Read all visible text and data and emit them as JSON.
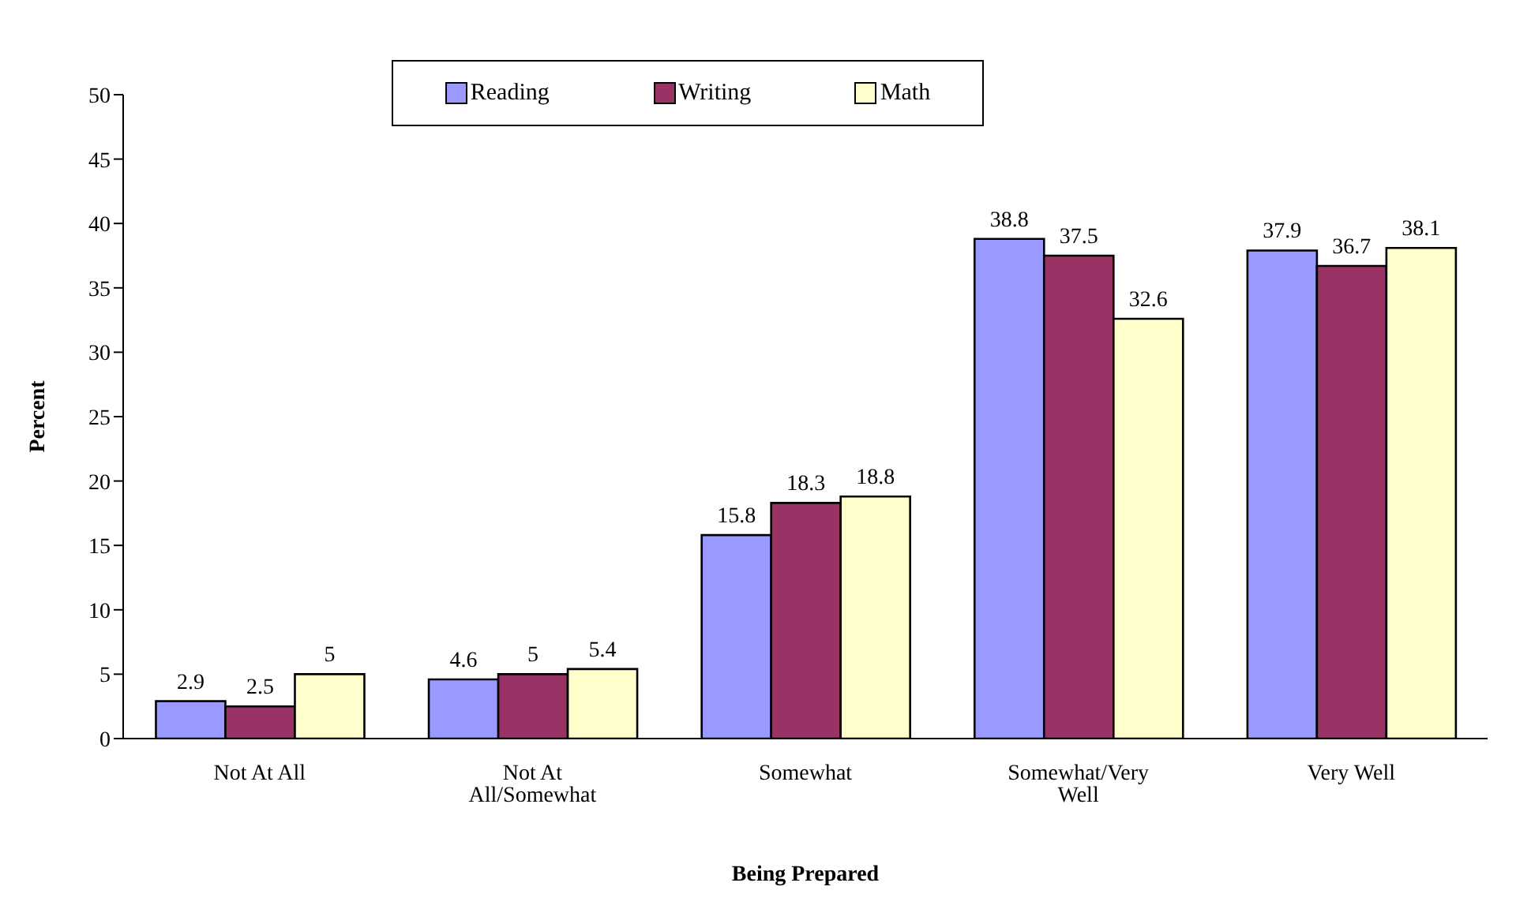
{
  "chart_data": {
    "type": "bar",
    "xlabel": "Being Prepared",
    "ylabel": "Percent",
    "categories": [
      "Not At All",
      "Not At All/Somewhat",
      "Somewhat",
      "Somewhat/Very Well",
      "Very Well"
    ],
    "series": [
      {
        "name": "Reading",
        "color": "#9999ff",
        "values": [
          2.9,
          4.6,
          15.8,
          38.8,
          37.9
        ]
      },
      {
        "name": "Writing",
        "color": "#993366",
        "values": [
          2.5,
          5,
          18.3,
          37.5,
          36.7
        ]
      },
      {
        "name": "Math",
        "color": "#ffffcc",
        "values": [
          5,
          5.4,
          18.8,
          32.6,
          38.1
        ]
      }
    ],
    "ylim": [
      0,
      50
    ],
    "yticks": [
      0,
      5,
      10,
      15,
      20,
      25,
      30,
      35,
      40,
      45,
      50
    ],
    "legend": "top",
    "data_labels": true
  }
}
